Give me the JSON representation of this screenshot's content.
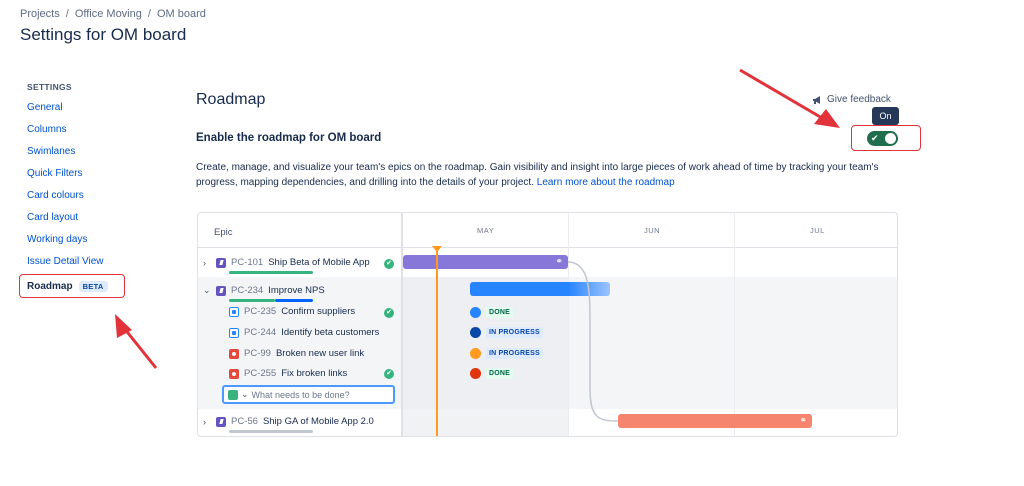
{
  "breadcrumb": {
    "items": [
      "Projects",
      "Office Moving",
      "OM board"
    ],
    "separator": "/"
  },
  "page_title": "Settings for OM board",
  "sidebar": {
    "heading": "SETTINGS",
    "items": [
      "General",
      "Columns",
      "Swimlanes",
      "Quick Filters",
      "Card colours",
      "Card layout",
      "Working days",
      "Issue Detail View"
    ],
    "active": {
      "label": "Roadmap",
      "badge": "BETA"
    }
  },
  "main": {
    "title": "Roadmap",
    "feedback_label": "Give feedback",
    "enable_label": "Enable the roadmap for OM board",
    "toggle": {
      "tooltip": "On",
      "state": "on"
    },
    "description": "Create, manage, and visualize your team's epics on the roadmap. Gain visibility and insight into large pieces of work ahead of time by tracking your team's progress, mapping dependencies, and drilling into the details of your project.",
    "learn_more": "Learn more about the roadmap"
  },
  "illustration": {
    "epic_header": "Epic",
    "months": [
      "MAY",
      "JUN",
      "JUL"
    ],
    "epics": [
      {
        "key": "PC-101",
        "summary": "Ship Beta of Mobile App",
        "done": true
      },
      {
        "key": "PC-234",
        "summary": "Improve NPS"
      },
      {
        "key": "PC-56",
        "summary": "Ship GA of Mobile App 2.0"
      }
    ],
    "children": [
      {
        "key": "PC-235",
        "summary": "Confirm suppliers",
        "type": "task",
        "done": true,
        "status": "DONE"
      },
      {
        "key": "PC-244",
        "summary": "Identify beta customers",
        "type": "task",
        "status": "IN PROGRESS"
      },
      {
        "key": "PC-99",
        "summary": "Broken new user link",
        "type": "bug",
        "status": "IN PROGRESS"
      },
      {
        "key": "PC-255",
        "summary": "Fix broken links",
        "type": "bug",
        "done": true,
        "status": "DONE"
      }
    ],
    "create_placeholder": "What needs to be done?",
    "colors": {
      "epic_purple": "#8777d9",
      "blue": "#2684ff",
      "coral": "#f5856f",
      "today": "#ff991f"
    }
  }
}
